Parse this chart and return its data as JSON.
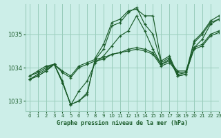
{
  "title": "Graphe pression niveau de la mer (hPa)",
  "bg_color": "#cceee8",
  "grid_color": "#99ccbb",
  "line_color": "#1a5c2a",
  "xlim": [
    -0.5,
    23
  ],
  "ylim": [
    1032.7,
    1035.9
  ],
  "yticks": [
    1033,
    1034,
    1035
  ],
  "xticks": [
    0,
    1,
    2,
    3,
    4,
    5,
    6,
    7,
    8,
    9,
    10,
    11,
    12,
    13,
    14,
    15,
    16,
    17,
    18,
    19,
    20,
    21,
    22,
    23
  ],
  "series": [
    {
      "x": [
        0,
        1,
        2,
        3,
        4,
        5,
        6,
        7,
        8,
        9,
        10,
        11,
        12,
        13,
        14,
        15,
        16,
        17,
        18,
        19,
        20,
        21,
        22,
        23
      ],
      "y": [
        1033.75,
        1033.9,
        1034.05,
        1034.1,
        1033.9,
        1033.75,
        1034.05,
        1034.15,
        1034.25,
        1034.3,
        1034.4,
        1034.45,
        1034.55,
        1034.6,
        1034.55,
        1034.45,
        1034.1,
        1034.2,
        1033.9,
        1033.9,
        1034.6,
        1034.7,
        1035.0,
        1035.1
      ]
    },
    {
      "x": [
        0,
        1,
        2,
        3,
        4,
        5,
        6,
        7,
        8,
        9,
        10,
        11,
        12,
        13,
        14,
        15,
        16,
        17,
        18,
        19,
        20,
        21,
        22,
        23
      ],
      "y": [
        1033.75,
        1033.85,
        1034.0,
        1034.1,
        1033.85,
        1033.7,
        1034.0,
        1034.1,
        1034.2,
        1034.25,
        1034.4,
        1034.45,
        1034.5,
        1034.55,
        1034.5,
        1034.4,
        1034.05,
        1034.15,
        1033.85,
        1033.85,
        1034.55,
        1034.65,
        1034.95,
        1035.05
      ]
    },
    {
      "x": [
        0,
        1,
        2,
        3,
        4,
        5,
        6,
        7,
        8,
        9,
        10,
        11,
        12,
        13,
        14,
        15,
        16,
        17,
        18,
        19,
        20,
        21,
        22,
        23
      ],
      "y": [
        1033.65,
        1033.8,
        1033.95,
        1034.1,
        1033.6,
        1032.88,
        1033.3,
        1033.6,
        1034.15,
        1034.35,
        1034.65,
        1034.95,
        1035.1,
        1035.55,
        1035.1,
        1034.55,
        1034.1,
        1034.25,
        1033.75,
        1033.8,
        1034.6,
        1034.85,
        1035.3,
        1035.45
      ]
    },
    {
      "x": [
        0,
        1,
        2,
        3,
        4,
        5,
        6,
        7,
        8,
        9,
        10,
        11,
        12,
        13,
        14,
        15,
        16,
        17,
        18,
        19,
        20,
        21,
        22,
        23
      ],
      "y": [
        1033.65,
        1033.75,
        1033.9,
        1034.1,
        1033.55,
        1032.9,
        1033.0,
        1033.2,
        1034.3,
        1034.7,
        1035.35,
        1035.45,
        1035.7,
        1035.75,
        1035.55,
        1035.55,
        1034.2,
        1034.35,
        1033.8,
        1033.85,
        1034.8,
        1035.05,
        1035.4,
        1035.55
      ]
    },
    {
      "x": [
        0,
        1,
        2,
        3,
        4,
        5,
        6,
        7,
        8,
        9,
        10,
        11,
        12,
        13,
        14,
        15,
        16,
        17,
        18,
        19,
        20,
        21,
        22,
        23
      ],
      "y": [
        1033.65,
        1033.75,
        1033.9,
        1034.1,
        1033.55,
        1032.9,
        1033.0,
        1033.25,
        1034.25,
        1034.55,
        1035.25,
        1035.35,
        1035.65,
        1035.8,
        1035.3,
        1035.0,
        1034.15,
        1034.3,
        1033.75,
        1033.8,
        1034.75,
        1035.0,
        1035.35,
        1035.45
      ]
    }
  ]
}
